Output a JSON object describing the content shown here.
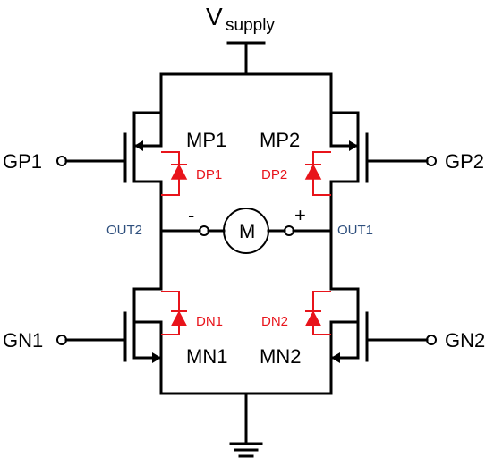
{
  "supply": {
    "main": "V",
    "sub": "supply"
  },
  "inputs": {
    "gp1": "GP1",
    "gp2": "GP2",
    "gn1": "GN1",
    "gn2": "GN2"
  },
  "transistors": {
    "mp1": "MP1",
    "mp2": "MP2",
    "mn1": "MN1",
    "mn2": "MN2"
  },
  "diodes": {
    "dp1": "DP1",
    "dp2": "DP2",
    "dn1": "DN1",
    "dn2": "DN2"
  },
  "outputs": {
    "out1": "OUT1",
    "out2": "OUT2"
  },
  "motor": {
    "label": "M",
    "minus": "-",
    "plus": "+"
  },
  "colors": {
    "wire": "#000000",
    "diode": "#e8141b",
    "net_label": "#2e4f7d"
  }
}
